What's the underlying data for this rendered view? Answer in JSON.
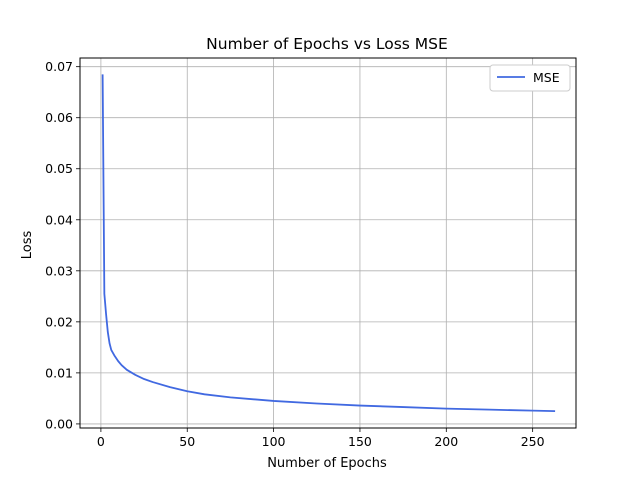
{
  "chart_data": {
    "type": "line",
    "title": "Number of Epochs vs Loss MSE",
    "xlabel": "Number of Epochs",
    "ylabel": "Loss",
    "xlim": [
      -12.1,
      275.1
    ],
    "ylim": [
      -0.0008,
      0.0717
    ],
    "xticks": [
      0,
      50,
      100,
      150,
      200,
      250
    ],
    "xtick_labels": [
      "0",
      "50",
      "100",
      "150",
      "200",
      "250"
    ],
    "yticks": [
      0.0,
      0.01,
      0.02,
      0.03,
      0.04,
      0.05,
      0.06,
      0.07
    ],
    "ytick_labels": [
      "0.00",
      "0.01",
      "0.02",
      "0.03",
      "0.04",
      "0.05",
      "0.06",
      "0.07"
    ],
    "grid": true,
    "legend": {
      "position": "top-right",
      "entries": [
        "MSE"
      ]
    },
    "series": [
      {
        "name": "MSE",
        "color": "#4169e1",
        "x": [
          1,
          2,
          3,
          4,
          5,
          6,
          8,
          10,
          12,
          15,
          20,
          25,
          30,
          40,
          50,
          60,
          75,
          100,
          125,
          150,
          175,
          200,
          225,
          250,
          263
        ],
        "y": [
          0.0685,
          0.0255,
          0.0215,
          0.018,
          0.0158,
          0.0145,
          0.0133,
          0.0123,
          0.0115,
          0.0106,
          0.0096,
          0.0088,
          0.0082,
          0.0072,
          0.0064,
          0.0058,
          0.0052,
          0.0045,
          0.004,
          0.0036,
          0.0033,
          0.003,
          0.0028,
          0.0026,
          0.0025
        ]
      }
    ]
  }
}
